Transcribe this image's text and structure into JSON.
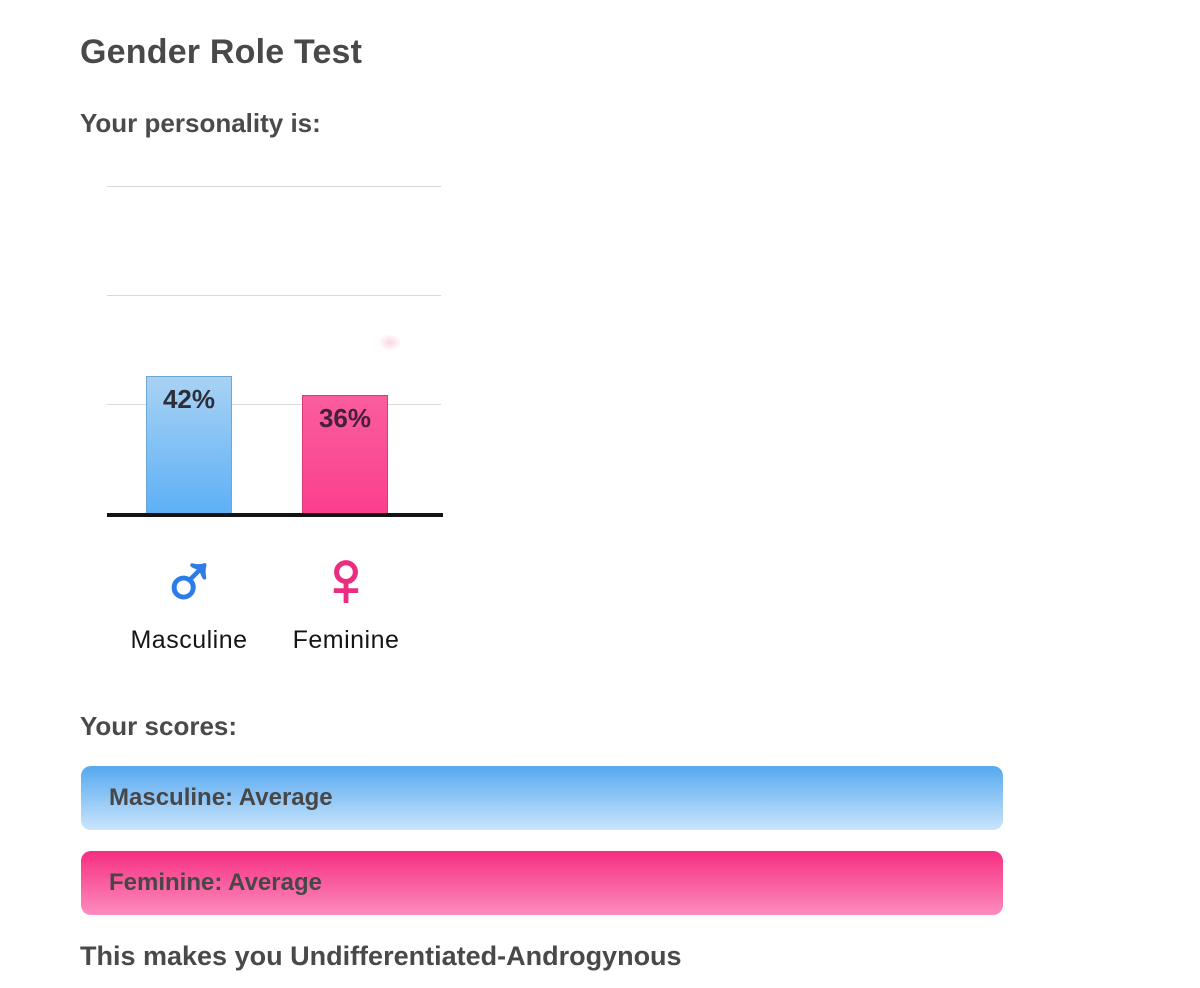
{
  "page": {
    "title": "Gender Role Test",
    "personality_heading": "Your personality is:",
    "scores_heading": "Your scores:",
    "result_text": "This makes you Undifferentiated-Androgynous"
  },
  "chart_data": {
    "type": "bar",
    "title": "",
    "xlabel": "",
    "ylabel": "",
    "categories": [
      "Masculine",
      "Feminine"
    ],
    "values": [
      42,
      36
    ],
    "value_labels": [
      "42%",
      "36%"
    ],
    "value_label_colors": [
      "#2e2e3a",
      "#44203a"
    ],
    "ylim": [
      0,
      100
    ],
    "grid": true,
    "gridline_values": [
      33.3,
      66.7,
      100
    ],
    "gridline_color": "#d9d9d9",
    "baseline_color": "#141414",
    "bar_colors": [
      {
        "top": "#a8d2f4",
        "bottom": "#5db0f6",
        "border": "#6ea6d4"
      },
      {
        "top": "#fa5d9d",
        "bottom": "#fb3f8e",
        "border": "#da3a78"
      }
    ],
    "category_symbols": [
      "♂",
      "♀"
    ],
    "symbol_colors": [
      "#2e7ce5",
      "#eb2d80"
    ],
    "legend": null
  },
  "scores": [
    {
      "label": "Masculine: Average",
      "color_top": "#56a8f0",
      "color_bottom": "#cae5fc"
    },
    {
      "label": "Feminine: Average",
      "color_top": "#f62e80",
      "color_bottom": "#fc8cbe"
    }
  ]
}
